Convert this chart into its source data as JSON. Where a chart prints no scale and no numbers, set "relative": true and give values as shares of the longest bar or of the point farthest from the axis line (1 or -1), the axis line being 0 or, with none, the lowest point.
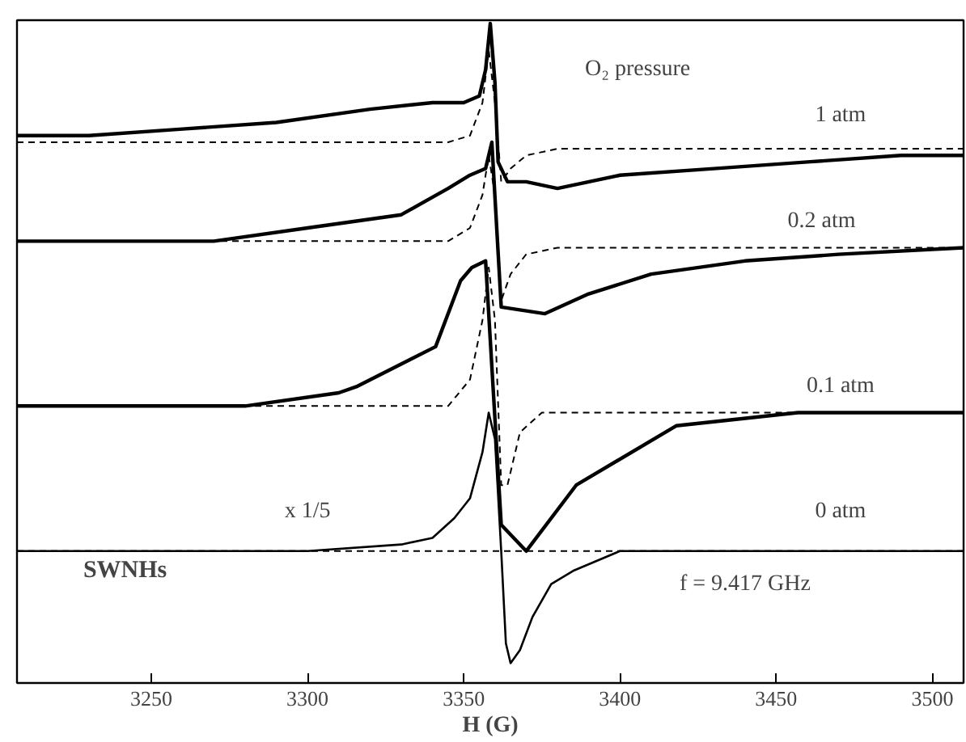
{
  "chart_data": {
    "type": "line",
    "relative": true,
    "xlabel": "H (G)",
    "xlim": [
      3207,
      3510
    ],
    "xticks": [
      3250,
      3300,
      3350,
      3400,
      3450,
      3500
    ],
    "series": [
      {
        "color": "#000000",
        "line_style": "solid",
        "x": [
          3207,
          3230,
          3260,
          3290,
          3320,
          3340,
          3350,
          3355,
          3357,
          3358.5,
          3360,
          3361,
          3364,
          3370,
          3380,
          3400,
          3430,
          3460,
          3490,
          3510
        ],
        "values": [
          0.83,
          0.83,
          0.84,
          0.85,
          0.87,
          0.88,
          0.88,
          0.89,
          0.93,
          1.0,
          0.91,
          0.79,
          0.76,
          0.76,
          0.75,
          0.77,
          0.78,
          0.79,
          0.8,
          0.8
        ]
      },
      {
        "color": "#000000",
        "line_style": "solid",
        "x": [
          3207,
          3270,
          3300,
          3330,
          3345,
          3352,
          3357,
          3359,
          3362,
          3376,
          3390,
          3410,
          3440,
          3470,
          3510
        ],
        "values": [
          0.67,
          0.67,
          0.69,
          0.71,
          0.75,
          0.77,
          0.78,
          0.82,
          0.57,
          0.56,
          0.59,
          0.62,
          0.64,
          0.65,
          0.66
        ]
      },
      {
        "color": "#000000",
        "line_style": "solid",
        "x": [
          3207,
          3280,
          3310,
          3316,
          3341,
          3349,
          3352.6,
          3357,
          3362,
          3370,
          3386,
          3418,
          3457,
          3510
        ],
        "values": [
          0.42,
          0.42,
          0.44,
          0.45,
          0.51,
          0.61,
          0.63,
          0.64,
          0.24,
          0.2,
          0.3,
          0.39,
          0.41,
          0.41
        ]
      },
      {
        "color": "#000000",
        "line_style": "solid",
        "x": [
          3207,
          3300,
          3330,
          3340,
          3347,
          3352,
          3356,
          3358,
          3360,
          3362,
          3363.5,
          3365,
          3368,
          3372,
          3378,
          3385,
          3400,
          3450,
          3510
        ],
        "values": [
          0.2,
          0.2,
          0.21,
          0.22,
          0.25,
          0.28,
          0.35,
          0.41,
          0.37,
          0.2,
          0.06,
          0.03,
          0.05,
          0.1,
          0.15,
          0.17,
          0.2,
          0.2,
          0.2
        ]
      },
      {
        "color": "#000000",
        "line_style": "dashed",
        "x": [
          3207,
          3345,
          3352,
          3356,
          3358,
          3360,
          3362,
          3365,
          3370,
          3380,
          3510
        ],
        "values": [
          0.82,
          0.82,
          0.83,
          0.88,
          0.96,
          0.88,
          0.76,
          0.78,
          0.8,
          0.81,
          0.81
        ]
      },
      {
        "color": "#000000",
        "line_style": "dashed",
        "x": [
          3207,
          3345,
          3352,
          3356,
          3358,
          3360,
          3362,
          3365,
          3370,
          3380,
          3510
        ],
        "values": [
          0.67,
          0.67,
          0.69,
          0.74,
          0.8,
          0.74,
          0.58,
          0.62,
          0.65,
          0.66,
          0.66
        ]
      },
      {
        "color": "#000000",
        "line_style": "dashed",
        "x": [
          3207,
          3345,
          3352,
          3356,
          3358,
          3360,
          3362,
          3364,
          3368,
          3375,
          3510
        ],
        "values": [
          0.42,
          0.42,
          0.46,
          0.55,
          0.63,
          0.55,
          0.3,
          0.3,
          0.38,
          0.41,
          0.41
        ]
      },
      {
        "color": "#000000",
        "line_style": "dashed",
        "x": [
          3207,
          3510
        ],
        "values": [
          0.2,
          0.2
        ]
      }
    ],
    "annotations": [
      "O₂ pressure",
      "1 atm",
      "0.2 atm",
      "0.1 atm",
      "0 atm",
      "x 1/5",
      "SWNHs",
      "f = 9.417 GHz"
    ]
  }
}
